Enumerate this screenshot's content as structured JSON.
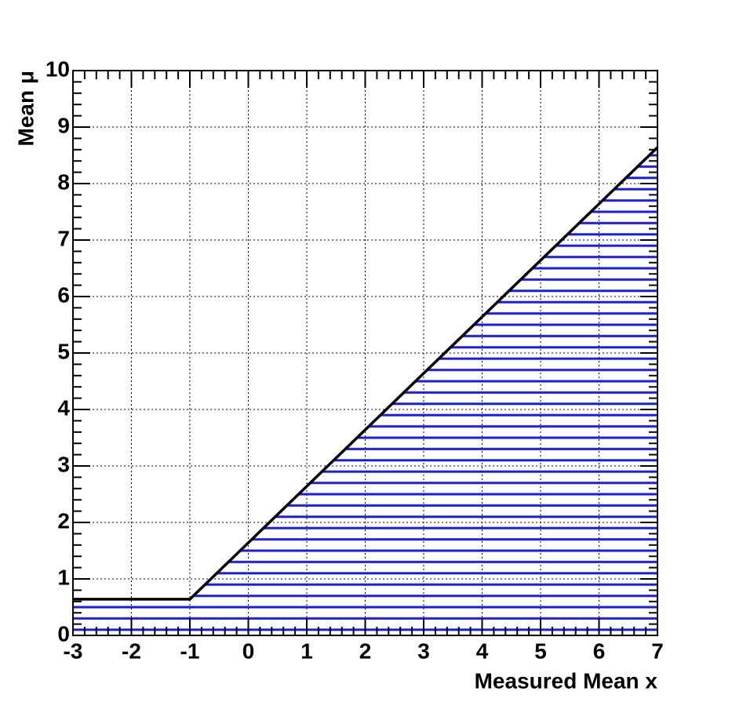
{
  "chart_data": {
    "type": "area",
    "x_label": "Measured Mean x",
    "y_label": "Mean μ",
    "x": [
      -3,
      -1,
      7
    ],
    "values": [
      0.64,
      0.64,
      8.64
    ],
    "fill_color": "#1a1ae6",
    "line_color": "#000000",
    "xlim": [
      -3,
      7
    ],
    "xticks": [
      -3,
      -2,
      -1,
      0,
      1,
      2,
      3,
      4,
      5,
      6,
      7
    ],
    "ylim": [
      0,
      10
    ],
    "yticks": [
      0,
      1,
      2,
      3,
      4,
      5,
      6,
      7,
      8,
      9,
      10
    ],
    "grid": true
  }
}
